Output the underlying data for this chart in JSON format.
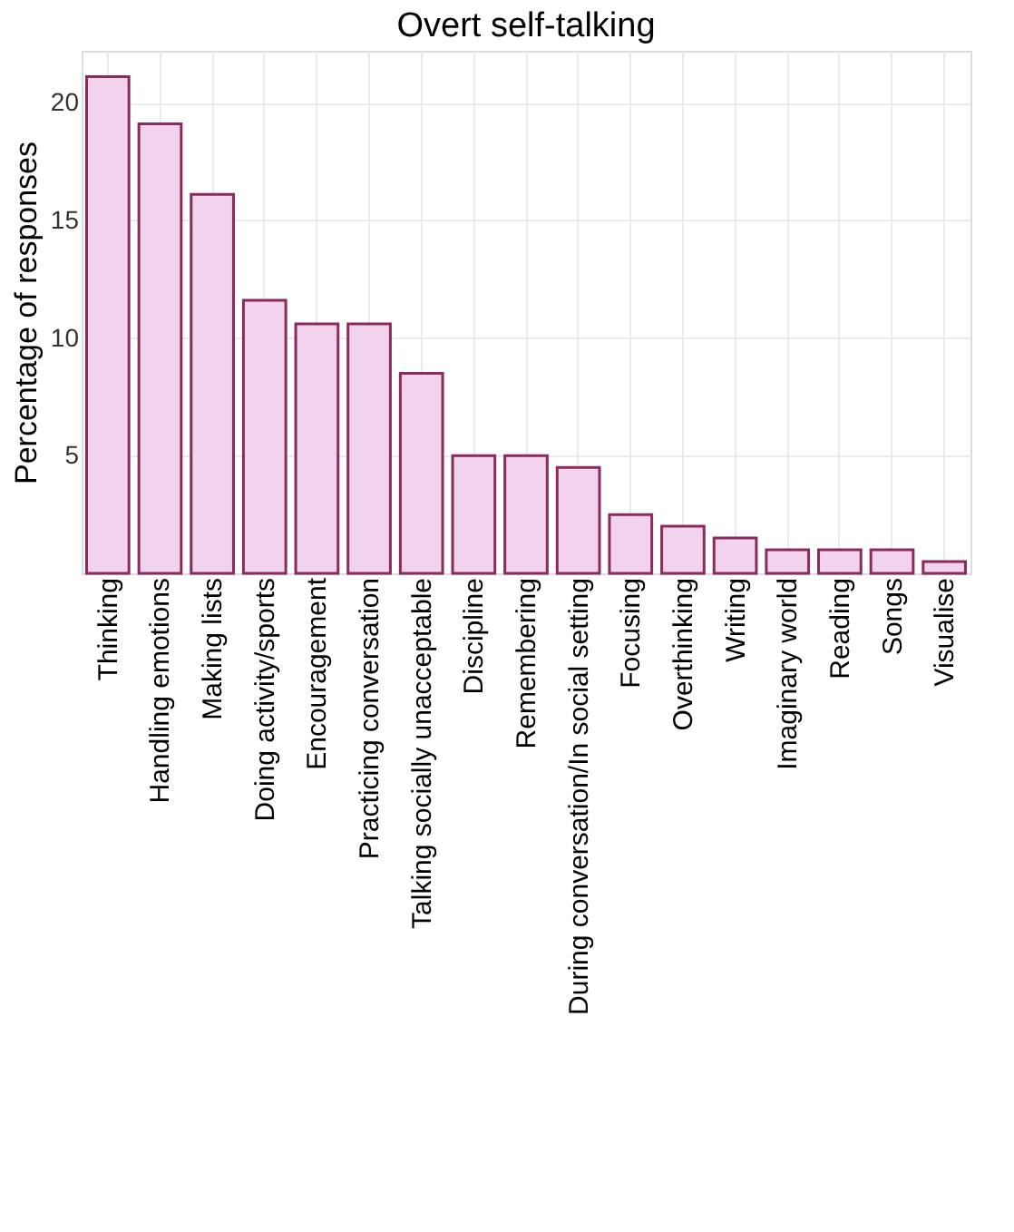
{
  "chart_data": {
    "type": "bar",
    "title": "Overt self-talking",
    "ylabel": "Percentage of responses",
    "categories": [
      "Thinking",
      "Handling emotions",
      "Making lists",
      "Doing activity/sports",
      "Encouragement",
      "Practicing conversation",
      "Talking socially unacceptable",
      "Discipline",
      "Remembering",
      "During conversation/In social setting",
      "Focusing",
      "Overthinking",
      "Writing",
      "Imaginary world",
      "Reading",
      "Songs",
      "Visualise"
    ],
    "values": [
      21.1,
      19.1,
      16.1,
      11.6,
      10.6,
      10.6,
      8.5,
      5.0,
      5.0,
      4.5,
      2.5,
      2.0,
      1.5,
      1.0,
      1.0,
      1.0,
      0.5
    ],
    "color": "#f2d3ee",
    "ylim": [
      0,
      22.2
    ],
    "yticks": [
      5,
      10,
      15,
      20
    ],
    "grid": true
  }
}
